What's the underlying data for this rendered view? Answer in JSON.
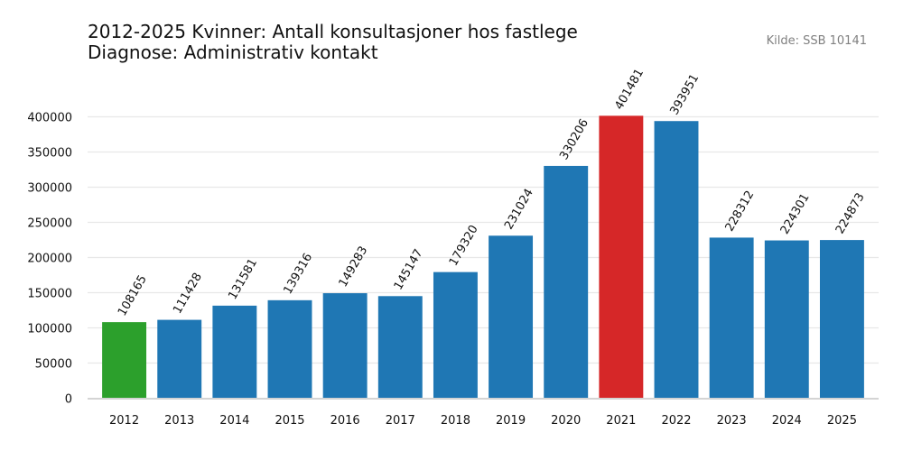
{
  "title_line1": "2012-2025 Kvinner: Antall konsultasjoner hos fastlege",
  "title_line2": "Diagnose: Administrativ kontakt",
  "source": "Kilde: SSB 10141",
  "chart_data": {
    "type": "bar",
    "title": "2012-2025 Kvinner: Antall konsultasjoner hos fastlege\nDiagnose: Administrativ kontakt",
    "xlabel": "",
    "ylabel": "",
    "categories": [
      "2012",
      "2013",
      "2014",
      "2015",
      "2016",
      "2017",
      "2018",
      "2019",
      "2020",
      "2021",
      "2022",
      "2023",
      "2024",
      "2025"
    ],
    "values": [
      108165,
      111428,
      131581,
      139316,
      149283,
      145147,
      179320,
      231024,
      330206,
      401481,
      393951,
      228312,
      224301,
      224873
    ],
    "ylim": [
      0,
      400000
    ],
    "yticks": [
      0,
      50000,
      100000,
      150000,
      200000,
      250000,
      300000,
      350000,
      400000
    ],
    "grid": "horizontal",
    "colors": {
      "default": "#1f77b4",
      "min": "#2ca02c",
      "max": "#d62728"
    },
    "highlight": {
      "2012": "min",
      "2021": "max"
    }
  }
}
